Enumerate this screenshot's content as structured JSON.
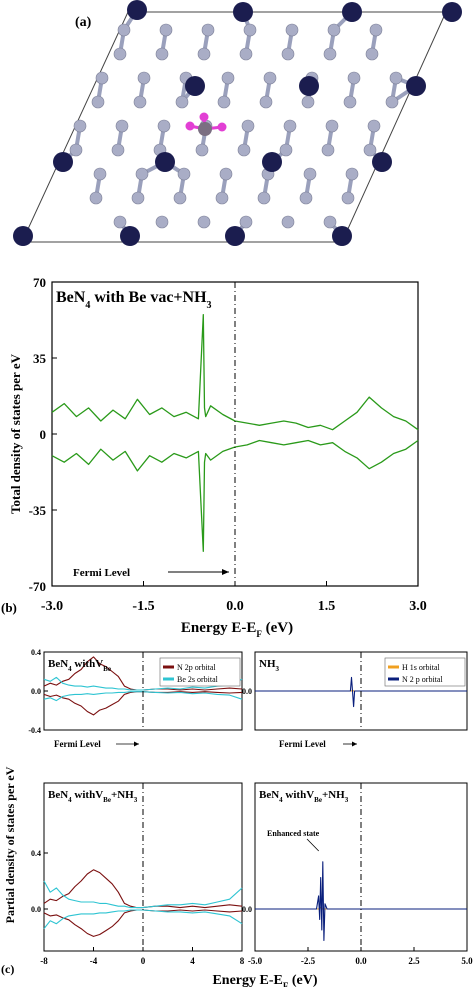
{
  "panel_a": {
    "label": "(a)",
    "colors": {
      "be_atom": "#1b1d4f",
      "n_atom": "#a9adc6",
      "nh3_n": "#7b6f82",
      "nh3_h": "#e23fd4",
      "cell": "#444444"
    }
  },
  "chart_data": [
    {
      "id": "b",
      "panel_label": "(b)",
      "type": "line",
      "title": "BeN₄ with Be vac+NH₃",
      "title_parts": [
        "BeN",
        "4",
        " with Be vac+NH",
        "3"
      ],
      "xlabel": "Energy E-E_F (eV)",
      "xlabel_parts": [
        "Energy E-E",
        "F",
        " (eV)"
      ],
      "ylabel": "Total density of states per eV",
      "xlim": [
        -3.0,
        3.0
      ],
      "ylim": [
        -70,
        70
      ],
      "xticks": [
        "-3.0",
        "-1.5",
        "0.0",
        "1.5",
        "3.0"
      ],
      "yticks": [
        "70",
        "35",
        "0",
        "-35",
        "-70"
      ],
      "fermi_annotation": "Fermi Level",
      "fermi_x": 0.0,
      "series": [
        {
          "color": "#2a9a1a",
          "x": [
            -3.0,
            -2.8,
            -2.6,
            -2.4,
            -2.2,
            -2.0,
            -1.8,
            -1.6,
            -1.4,
            -1.2,
            -1.0,
            -0.8,
            -0.6,
            -0.52,
            -0.5,
            -0.48,
            -0.4,
            -0.2,
            0.0,
            0.2,
            0.4,
            0.6,
            0.8,
            1.0,
            1.2,
            1.4,
            1.6,
            1.8,
            2.0,
            2.2,
            2.4,
            2.6,
            2.8,
            3.0
          ],
          "values": [
            10,
            14,
            8,
            12,
            6,
            11,
            7,
            16,
            9,
            12,
            8,
            10,
            7,
            55,
            12,
            8,
            13,
            9,
            6,
            5,
            4,
            5,
            6,
            5,
            3,
            4,
            2,
            6,
            10,
            17,
            12,
            8,
            6,
            2
          ]
        },
        {
          "color": "#2a9a1a",
          "x": [
            -3.0,
            -2.8,
            -2.6,
            -2.4,
            -2.2,
            -2.0,
            -1.8,
            -1.6,
            -1.4,
            -1.2,
            -1.0,
            -0.8,
            -0.6,
            -0.52,
            -0.5,
            -0.48,
            -0.4,
            -0.2,
            0.0,
            0.2,
            0.4,
            0.6,
            0.8,
            1.0,
            1.2,
            1.4,
            1.6,
            1.8,
            2.0,
            2.2,
            2.4,
            2.6,
            2.8,
            3.0
          ],
          "values": [
            -10,
            -13,
            -9,
            -14,
            -7,
            -12,
            -8,
            -17,
            -10,
            -13,
            -9,
            -11,
            -8,
            -54,
            -13,
            -9,
            -12,
            -8,
            -6,
            -5,
            -3,
            -4,
            -5,
            -4,
            -3,
            -5,
            -4,
            -8,
            -11,
            -16,
            -13,
            -9,
            -7,
            -3
          ]
        }
      ]
    },
    {
      "id": "c1",
      "panel_label": "(c)",
      "type": "line",
      "title": "BeN₄ withV_Be",
      "title_parts": [
        "BeN",
        "4",
        " withV",
        "Be",
        ""
      ],
      "xlim": [
        -8,
        8
      ],
      "ylim": [
        -0.4,
        0.4
      ],
      "yticks": [
        "0.4",
        "0.0",
        "-0.4"
      ],
      "fermi_annotation": "Fermi Level",
      "fermi_x": 0,
      "legend": [
        "N 2p orbital",
        "Be 2s orbital"
      ],
      "series": [
        {
          "name": "N 2p orbital",
          "color": "#7b1010",
          "x": [
            -8,
            -7.5,
            -7,
            -6.5,
            -6,
            -5.5,
            -5,
            -4.5,
            -4,
            -3.5,
            -3,
            -2.5,
            -2,
            -1.5,
            -1,
            -0.5,
            0,
            1,
            2,
            3,
            4,
            5,
            6,
            7,
            8
          ],
          "values": [
            0.05,
            0.08,
            0.06,
            0.1,
            0.12,
            0.18,
            0.22,
            0.3,
            0.35,
            0.28,
            0.25,
            0.2,
            0.15,
            0.05,
            0.02,
            0.01,
            0.01,
            0.02,
            0.02,
            0.01,
            0.02,
            0.01,
            0.02,
            0.03,
            0.02
          ]
        },
        {
          "name": "Be 2s orbital",
          "color": "#2ec4d2",
          "x": [
            -8,
            -7.5,
            -7,
            -6.5,
            -6,
            -5.5,
            -5,
            -4.5,
            -4,
            -3.5,
            -3,
            -2.5,
            -2,
            -1.5,
            -1,
            -0.5,
            0,
            1,
            2,
            3,
            4,
            5,
            6,
            7,
            8
          ],
          "values": [
            0.12,
            0.1,
            0.14,
            0.08,
            0.06,
            0.05,
            0.05,
            0.04,
            0.05,
            0.04,
            0.03,
            0.03,
            0.02,
            0.02,
            0.01,
            0.01,
            0.01,
            0.02,
            0.03,
            0.02,
            0.04,
            0.03,
            0.05,
            0.06,
            0.12
          ]
        }
      ]
    },
    {
      "id": "c2",
      "type": "line",
      "title": "BeN₄ withV_Be+NH₃",
      "title_parts": [
        "BeN",
        "4",
        " withV",
        "Be",
        "+NH",
        "3"
      ],
      "xlim": [
        -8,
        8
      ],
      "ylim": [
        -0.4,
        0.4
      ],
      "xticks": [
        "-8",
        "-4",
        "0",
        "4",
        "8"
      ],
      "yticks": [
        "0.4",
        "0.0",
        "-0.4"
      ],
      "series": [
        {
          "name": "N 2p orbital",
          "color": "#7b1010",
          "x": [
            -8,
            -7.5,
            -7,
            -6.5,
            -6,
            -5.5,
            -5,
            -4.5,
            -4,
            -3.5,
            -3,
            -2.5,
            -2,
            -1.5,
            -1,
            -0.5,
            0,
            1,
            2,
            3,
            4,
            5,
            6,
            7,
            8
          ],
          "values": [
            0.04,
            0.07,
            0.06,
            0.09,
            0.11,
            0.16,
            0.2,
            0.25,
            0.28,
            0.26,
            0.22,
            0.18,
            0.12,
            0.04,
            0.02,
            0.01,
            0.01,
            0.02,
            0.02,
            0.01,
            0.02,
            0.01,
            0.02,
            0.03,
            0.02
          ]
        },
        {
          "name": "Be 2s orbital",
          "color": "#2ec4d2",
          "x": [
            -8,
            -7.5,
            -7,
            -6.5,
            -6,
            -5.5,
            -5,
            -4.5,
            -4,
            -3.5,
            -3,
            -2.5,
            -2,
            -1.5,
            -1,
            -0.5,
            0,
            1,
            2,
            3,
            4,
            5,
            6,
            7,
            8
          ],
          "values": [
            0.2,
            0.12,
            0.15,
            0.1,
            0.07,
            0.06,
            0.05,
            0.05,
            0.05,
            0.04,
            0.04,
            0.03,
            0.02,
            0.02,
            0.01,
            0.01,
            0.01,
            0.02,
            0.03,
            0.03,
            0.04,
            0.03,
            0.05,
            0.07,
            0.15
          ]
        }
      ]
    },
    {
      "id": "c3",
      "type": "line",
      "title": "NH₃",
      "title_parts": [
        "NH",
        "3"
      ],
      "xlim": [
        -5.0,
        5.0
      ],
      "ylim": [
        -1,
        1
      ],
      "fermi_annotation": "Fermi Level",
      "fermi_x": 0.0,
      "legend": [
        "H 1s orbital",
        "N 2 p orbital"
      ],
      "series": [
        {
          "name": "H 1s orbital",
          "color": "#f0a020",
          "x": [
            -5.0,
            -0.45,
            -0.4,
            -0.35,
            5.0
          ],
          "values": [
            0,
            0,
            0.02,
            0,
            0
          ]
        },
        {
          "name": "N 2 p orbital",
          "color": "#0a1f7c",
          "x": [
            -5.0,
            -0.5,
            -0.45,
            -0.4,
            -0.35,
            -0.3,
            5.0
          ],
          "values": [
            0,
            0,
            0.35,
            0,
            -0.4,
            0,
            0
          ]
        }
      ]
    },
    {
      "id": "c4",
      "type": "line",
      "title": "BeN₄ withV_Be+NH₃",
      "title_parts": [
        "BeN",
        "4",
        " withV",
        "Be",
        "+NH",
        "3"
      ],
      "xlim": [
        -5.0,
        5.0
      ],
      "ylim": [
        -1,
        1
      ],
      "xticks": [
        "-5.0",
        "-2.5",
        "0.0",
        "2.5",
        "5.0"
      ],
      "annotation": "Enhanced state",
      "series": [
        {
          "name": "H 1s orbital",
          "color": "#f0a020",
          "x": [
            -5.0,
            -2.0,
            -1.9,
            -1.8,
            5.0
          ],
          "values": [
            0,
            0,
            0.03,
            0,
            0
          ]
        },
        {
          "name": "N 2 p orbital",
          "color": "#0a1f7c",
          "x": [
            -5.0,
            -2.1,
            -2.0,
            -1.95,
            -1.9,
            -1.85,
            -1.8,
            -1.75,
            -1.7,
            -1.6,
            5.0
          ],
          "values": [
            0,
            0,
            0.25,
            -0.2,
            0.6,
            -0.4,
            0.9,
            -0.6,
            0.1,
            0,
            0
          ]
        }
      ]
    }
  ],
  "panel_c_shared": {
    "ylabel": "Partial density of states per eV",
    "xlabel": "Energy E-E_F (eV)",
    "xlabel_parts": [
      "Energy E-E",
      "F",
      " (eV)"
    ]
  }
}
